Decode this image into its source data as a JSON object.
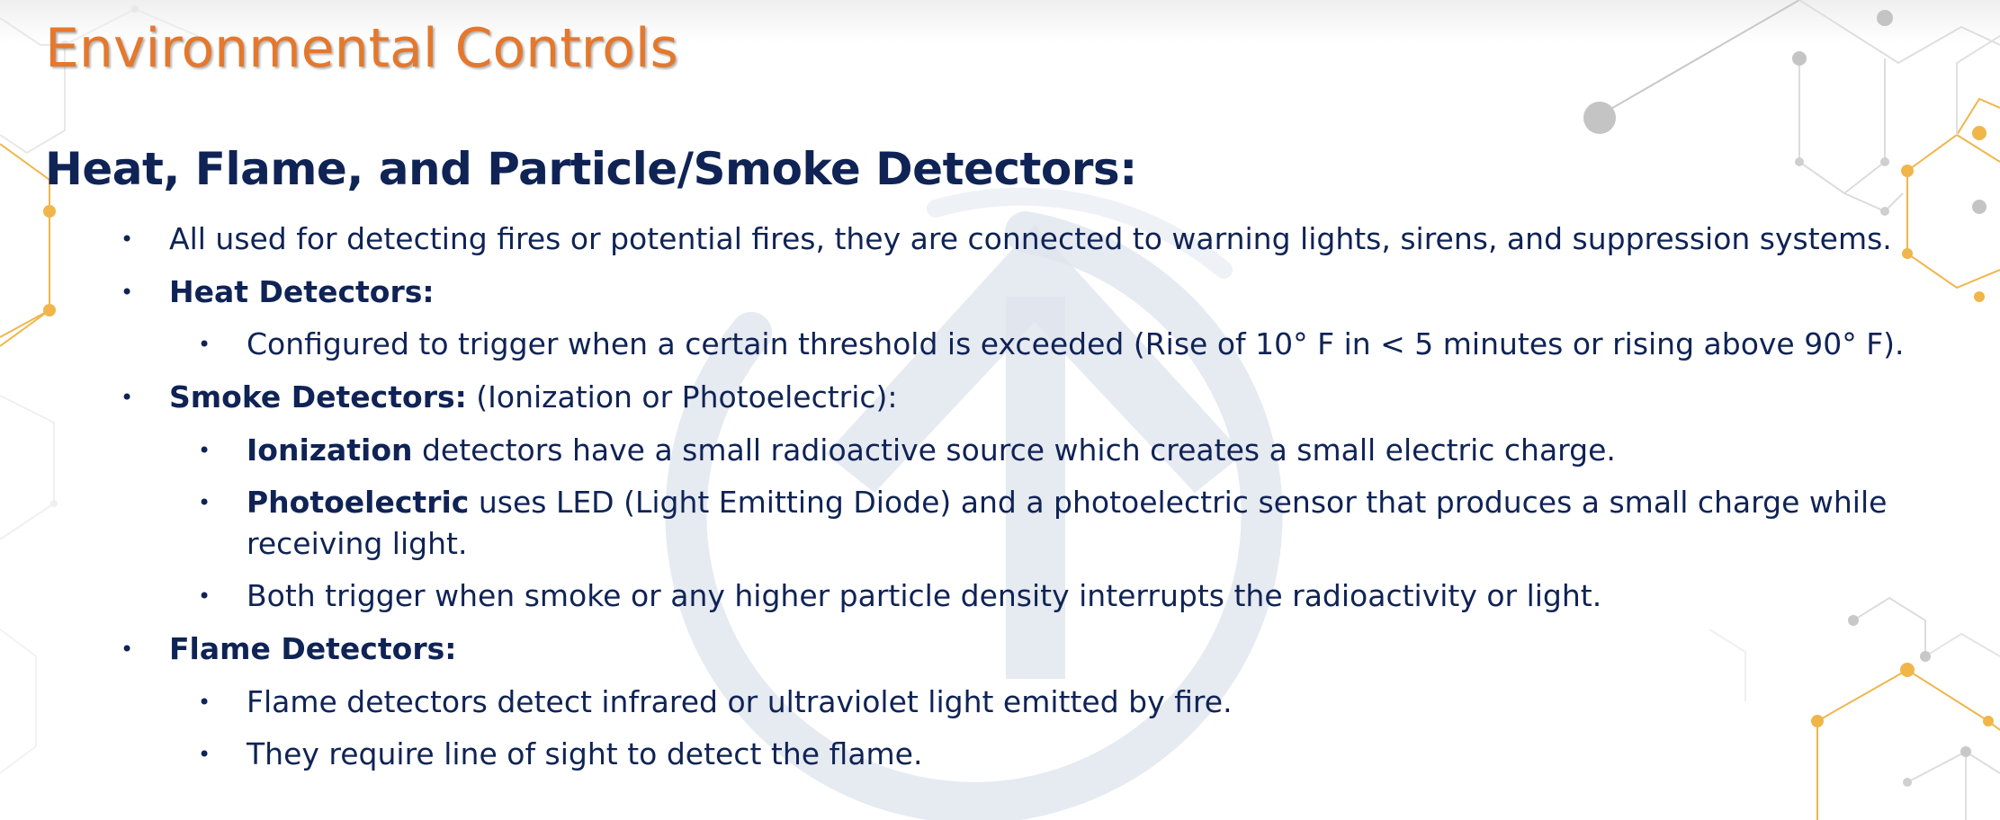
{
  "slide": {
    "title": "Environmental Controls",
    "heading": "Heat, Flame, and Particle/Smoke Detectors:",
    "bullet_glyph": "•",
    "colors": {
      "title": "#e4782d",
      "text": "#0f2355",
      "accent_lines": "#f0b64a",
      "background": "#ffffff"
    },
    "bullets": [
      {
        "plain": "All used for detecting fires or potential fires, they are connected to warning lights, sirens, and suppression systems."
      },
      {
        "bold": "Heat Detectors:"
      },
      {
        "plain": "Configured to trigger when a certain threshold is exceeded (Rise of 10° F in < 5 minutes or rising above 90° F)."
      },
      {
        "bold": "Smoke Detectors:",
        "rest": " (Ionization or Photoelectric):"
      },
      {
        "bold": "Ionization",
        "rest": " detectors have a small radioactive source which creates a small electric charge."
      },
      {
        "bold": "Photoelectric",
        "rest": " uses LED (Light Emitting Diode) and a photoelectric sensor that produces a small charge while",
        "cont": "receiving light."
      },
      {
        "plain": "Both trigger when smoke or any higher particle density interrupts the radioactivity or light."
      },
      {
        "bold": "Flame Detectors:"
      },
      {
        "plain": "Flame detectors detect infrared or ultraviolet light emitted by fire."
      },
      {
        "plain": "They require line of sight to detect the flame."
      }
    ]
  }
}
